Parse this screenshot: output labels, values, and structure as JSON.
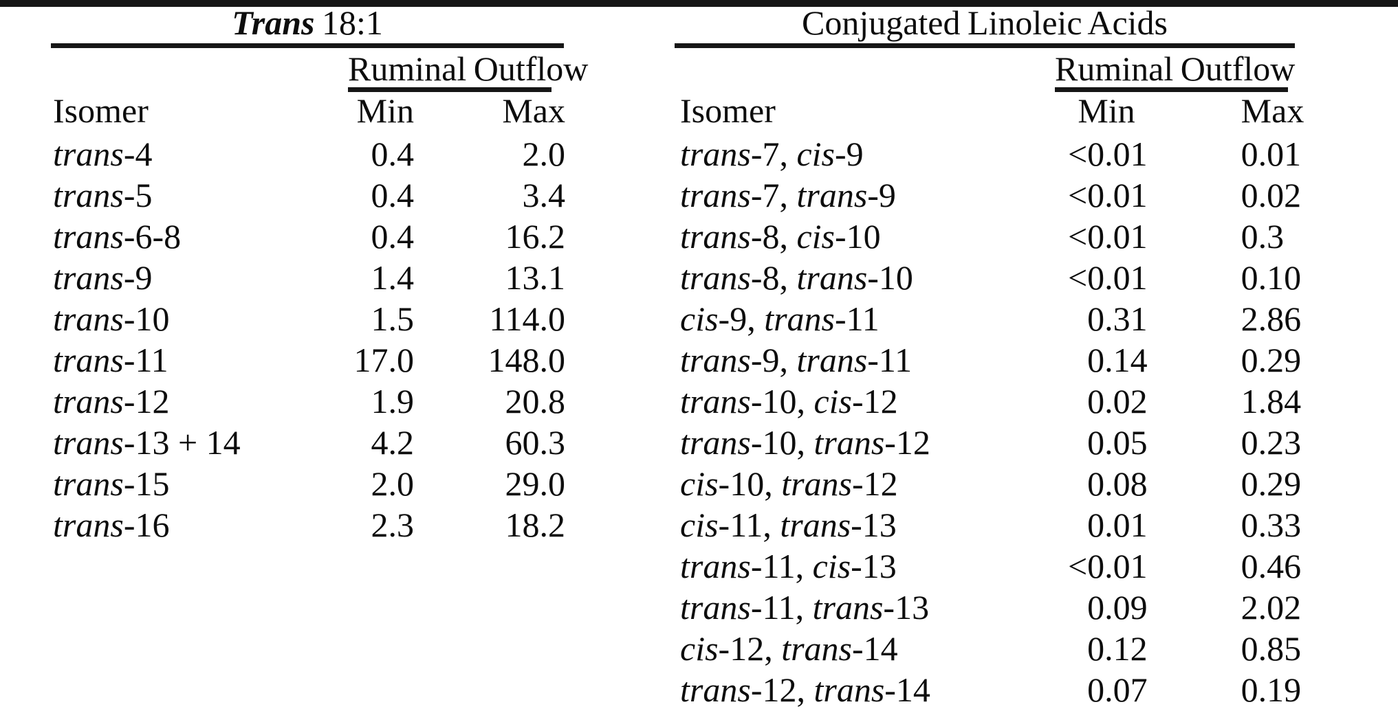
{
  "page": {
    "background_color": "#ffffff",
    "text_color": "#0d0d0d",
    "rule_color": "#161616"
  },
  "tables": [
    {
      "title_emphasis": "Trans",
      "title_rest": " 18:1",
      "subheader": "Ruminal Outflow",
      "columns": [
        "Isomer",
        "Min",
        "Max"
      ],
      "rows": [
        {
          "isomer": "trans-4",
          "min": "0.4",
          "max": "2.0"
        },
        {
          "isomer": "trans-5",
          "min": "0.4",
          "max": "3.4"
        },
        {
          "isomer": "trans-6-8",
          "min": "0.4",
          "max": "16.2"
        },
        {
          "isomer": "trans-9",
          "min": "1.4",
          "max": "13.1"
        },
        {
          "isomer": "trans-10",
          "min": "1.5",
          "max": "114.0"
        },
        {
          "isomer": "trans-11",
          "min": "17.0",
          "max": "148.0"
        },
        {
          "isomer": "trans-12",
          "min": "1.9",
          "max": "20.8"
        },
        {
          "isomer": "trans-13 + 14",
          "min": "4.2",
          "max": "60.3"
        },
        {
          "isomer": "trans-15",
          "min": "2.0",
          "max": "29.0"
        },
        {
          "isomer": "trans-16",
          "min": "2.3",
          "max": "18.2"
        }
      ]
    },
    {
      "title_emphasis": "",
      "title_rest": "Conjugated Linoleic Acids",
      "subheader": "Ruminal Outflow",
      "columns": [
        "Isomer",
        "Min",
        "Max"
      ],
      "rows": [
        {
          "isomer": "trans-7, cis-9",
          "min": "<0.01",
          "max": "0.01"
        },
        {
          "isomer": "trans-7, trans-9",
          "min": "<0.01",
          "max": "0.02"
        },
        {
          "isomer": "trans-8, cis-10",
          "min": "<0.01",
          "max": "0.3"
        },
        {
          "isomer": "trans-8, trans-10",
          "min": "<0.01",
          "max": "0.10"
        },
        {
          "isomer": "cis-9, trans-11",
          "min": "0.31",
          "max": "2.86"
        },
        {
          "isomer": "trans-9, trans-11",
          "min": "0.14",
          "max": "0.29"
        },
        {
          "isomer": "trans-10, cis-12",
          "min": "0.02",
          "max": "1.84"
        },
        {
          "isomer": "trans-10, trans-12",
          "min": "0.05",
          "max": "0.23"
        },
        {
          "isomer": "cis-10, trans-12",
          "min": "0.08",
          "max": "0.29"
        },
        {
          "isomer": "cis-11, trans-13",
          "min": "0.01",
          "max": "0.33"
        },
        {
          "isomer": "trans-11, cis-13",
          "min": "<0.01",
          "max": "0.46"
        },
        {
          "isomer": "trans-11, trans-13",
          "min": "0.09",
          "max": "2.02"
        },
        {
          "isomer": "cis-12, trans-14",
          "min": "0.12",
          "max": "0.85"
        },
        {
          "isomer": "trans-12, trans-14",
          "min": "0.07",
          "max": "0.19"
        }
      ]
    }
  ]
}
